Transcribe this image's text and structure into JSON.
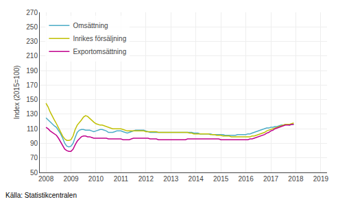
{
  "chart_data": {
    "type": "line",
    "ylabel": "Index (2015=100)",
    "annotations": [
      "Källa: Statistikcentralen"
    ],
    "xlim": [
      2007.75,
      2019.25
    ],
    "xticks": [
      2008,
      2009,
      2010,
      2011,
      2012,
      2013,
      2014,
      2015,
      2016,
      2017,
      2018,
      2019
    ],
    "ylim": [
      50,
      270
    ],
    "yticks": [
      50,
      70,
      90,
      110,
      130,
      150,
      170,
      190,
      210,
      230,
      250,
      270
    ],
    "grid": true,
    "legend": "upper left",
    "x": [
      2008,
      2008.0833333333333,
      2008.1666666666667,
      2008.25,
      2008.3333333333333,
      2008.4166666666667,
      2008.5,
      2008.5833333333333,
      2008.6666666666667,
      2008.75,
      2008.8333333333333,
      2008.9166666666667,
      2009,
      2009.0833333333333,
      2009.1666666666667,
      2009.25,
      2009.3333333333333,
      2009.4166666666667,
      2009.5,
      2009.5833333333333,
      2009.6666666666667,
      2009.75,
      2009.8333333333333,
      2009.9166666666667,
      2010,
      2010.0833333333333,
      2010.1666666666667,
      2010.25,
      2010.3333333333333,
      2010.4166666666667,
      2010.5,
      2010.5833333333333,
      2010.6666666666667,
      2010.75,
      2010.8333333333333,
      2010.9166666666667,
      2011,
      2011.0833333333333,
      2011.1666666666667,
      2011.25,
      2011.3333333333333,
      2011.4166666666667,
      2011.5,
      2011.5833333333333,
      2011.6666666666667,
      2011.75,
      2011.8333333333333,
      2011.9166666666667,
      2012,
      2012.0833333333333,
      2012.1666666666667,
      2012.25,
      2012.3333333333333,
      2012.4166666666667,
      2012.5,
      2012.5833333333333,
      2012.6666666666667,
      2012.75,
      2012.8333333333333,
      2012.9166666666667,
      2013,
      2013.0833333333333,
      2013.1666666666667,
      2013.25,
      2013.3333333333333,
      2013.4166666666667,
      2013.5,
      2013.5833333333333,
      2013.6666666666667,
      2013.75,
      2013.8333333333333,
      2013.9166666666667,
      2014,
      2014.0833333333333,
      2014.1666666666667,
      2014.25,
      2014.3333333333333,
      2014.4166666666667,
      2014.5,
      2014.5833333333333,
      2014.6666666666667,
      2014.75,
      2014.8333333333333,
      2014.9166666666667,
      2015,
      2015.0833333333333,
      2015.1666666666667,
      2015.25,
      2015.3333333333333,
      2015.4166666666667,
      2015.5,
      2015.5833333333333,
      2015.6666666666667,
      2015.75,
      2015.8333333333333,
      2015.9166666666667,
      2016,
      2016.0833333333333,
      2016.1666666666667,
      2016.25,
      2016.3333333333333,
      2016.4166666666667,
      2016.5,
      2016.5833333333333,
      2016.6666666666667,
      2016.75,
      2016.8333333333333,
      2016.9166666666667,
      2017,
      2017.0833333333333,
      2017.1666666666667,
      2017.25,
      2017.3333333333333,
      2017.4166666666667,
      2017.5,
      2017.5833333333333,
      2017.6666666666667,
      2017.75,
      2017.8333333333333,
      2017.9166666666667
    ],
    "series": [
      {
        "name": "Omsättning",
        "color": "#4bacc6",
        "values": [
          125,
          122,
          119,
          116,
          114,
          112,
          108,
          103,
          97,
          90,
          86,
          85,
          86,
          90,
          98,
          105,
          108,
          109,
          109,
          108,
          108,
          108,
          107,
          106,
          107,
          108,
          109,
          109,
          108,
          107,
          105,
          105,
          105,
          106,
          107,
          107,
          107,
          106,
          105,
          104,
          105,
          106,
          107,
          108,
          108,
          108,
          108,
          108,
          107,
          106,
          105,
          105,
          105,
          105,
          105,
          105,
          105,
          105,
          105,
          105,
          105,
          105,
          105,
          105,
          105,
          105,
          105,
          105,
          105,
          105,
          105,
          104,
          104,
          104,
          103,
          103,
          103,
          103,
          103,
          103,
          102,
          102,
          102,
          102,
          102,
          102,
          101,
          101,
          101,
          101,
          101,
          101,
          102,
          102,
          102,
          102,
          102,
          103,
          103,
          104,
          105,
          106,
          107,
          108,
          109,
          110,
          111,
          111,
          112,
          112,
          113,
          113,
          114,
          115,
          115,
          116,
          116,
          115,
          116,
          116
        ]
      },
      {
        "name": "Inrikes försäljning",
        "color": "#bfbf00",
        "values": [
          145,
          140,
          133,
          127,
          122,
          117,
          111,
          105,
          100,
          96,
          94,
          94,
          95,
          100,
          109,
          115,
          118,
          122,
          126,
          128,
          127,
          124,
          121,
          119,
          117,
          116,
          115,
          115,
          114,
          113,
          112,
          111,
          110,
          110,
          110,
          110,
          110,
          109,
          108,
          107,
          107,
          107,
          107,
          107,
          107,
          107,
          107,
          107,
          106,
          106,
          106,
          106,
          106,
          106,
          105,
          105,
          105,
          105,
          105,
          105,
          105,
          105,
          105,
          105,
          105,
          105,
          105,
          105,
          105,
          104,
          104,
          103,
          103,
          103,
          103,
          103,
          103,
          103,
          103,
          102,
          102,
          102,
          101,
          101,
          101,
          100,
          100,
          100,
          100,
          99,
          99,
          99,
          99,
          99,
          99,
          99,
          99,
          99,
          99,
          100,
          100,
          101,
          102,
          103,
          104,
          105,
          107,
          108,
          109,
          110,
          111,
          112,
          113,
          114,
          115,
          116,
          116,
          116,
          117,
          118
        ]
      },
      {
        "name": "Exportomsättning",
        "color": "#c0008c",
        "values": [
          112,
          110,
          107,
          105,
          103,
          101,
          97,
          92,
          87,
          82,
          80,
          79,
          79,
          82,
          88,
          93,
          96,
          99,
          100,
          100,
          99,
          99,
          98,
          97,
          97,
          97,
          97,
          97,
          97,
          97,
          96,
          96,
          96,
          96,
          96,
          96,
          96,
          95,
          95,
          95,
          95,
          96,
          97,
          97,
          97,
          97,
          97,
          97,
          97,
          97,
          96,
          96,
          96,
          96,
          95,
          95,
          95,
          95,
          95,
          95,
          95,
          95,
          95,
          95,
          95,
          95,
          95,
          95,
          96,
          96,
          96,
          96,
          96,
          96,
          96,
          96,
          96,
          96,
          96,
          96,
          96,
          96,
          96,
          96,
          95,
          95,
          95,
          95,
          95,
          95,
          95,
          95,
          95,
          95,
          95,
          95,
          95,
          95,
          96,
          96,
          97,
          98,
          99,
          100,
          101,
          102,
          104,
          105,
          107,
          108,
          110,
          111,
          112,
          113,
          114,
          115,
          115,
          115,
          116,
          116
        ]
      }
    ]
  }
}
